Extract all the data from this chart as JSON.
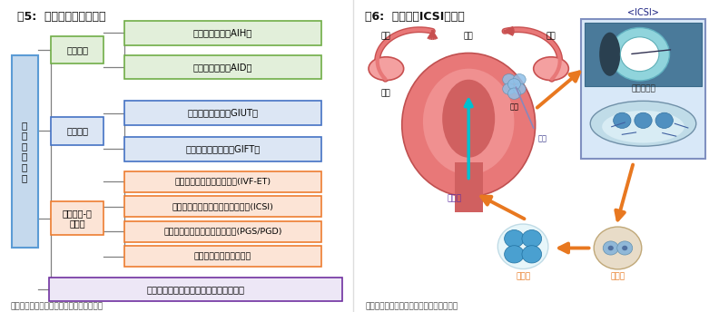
{
  "fig_title_left": "图5:  辅助生殖的技术分类",
  "fig_title_right": "图6:  辅助生殖ICSI示意图",
  "source_left": "资料来源：丁香园、广发证券发展研究中心",
  "source_right": "数据来源：丁香园、广发证券发展研究中心",
  "green_color": "#70ad47",
  "green_fill": "#e2efda",
  "blue_color": "#4472c4",
  "blue_fill": "#dce6f4",
  "orange_color": "#ed7d31",
  "orange_fill": "#fce4d6",
  "purple_color": "#7030a0",
  "purple_fill": "#ede7f6",
  "root_color": "#5b9bd5",
  "root_fill": "#c5d9ed",
  "gray_line": "#808080",
  "uterus_outer": "#e87878",
  "uterus_mid": "#d06060",
  "uterus_inner": "#f0a0a0",
  "uterus_body_dark": "#c85050",
  "tube_color": "#d06060",
  "ovary_color": "#f4a0a0",
  "icsi_box_fill": "#d8e8f8",
  "icsi_box_border": "#8090c0",
  "cyan_arrow": "#00c0d0",
  "orange_arrow": "#e87820",
  "purple_label": "#6030a0"
}
